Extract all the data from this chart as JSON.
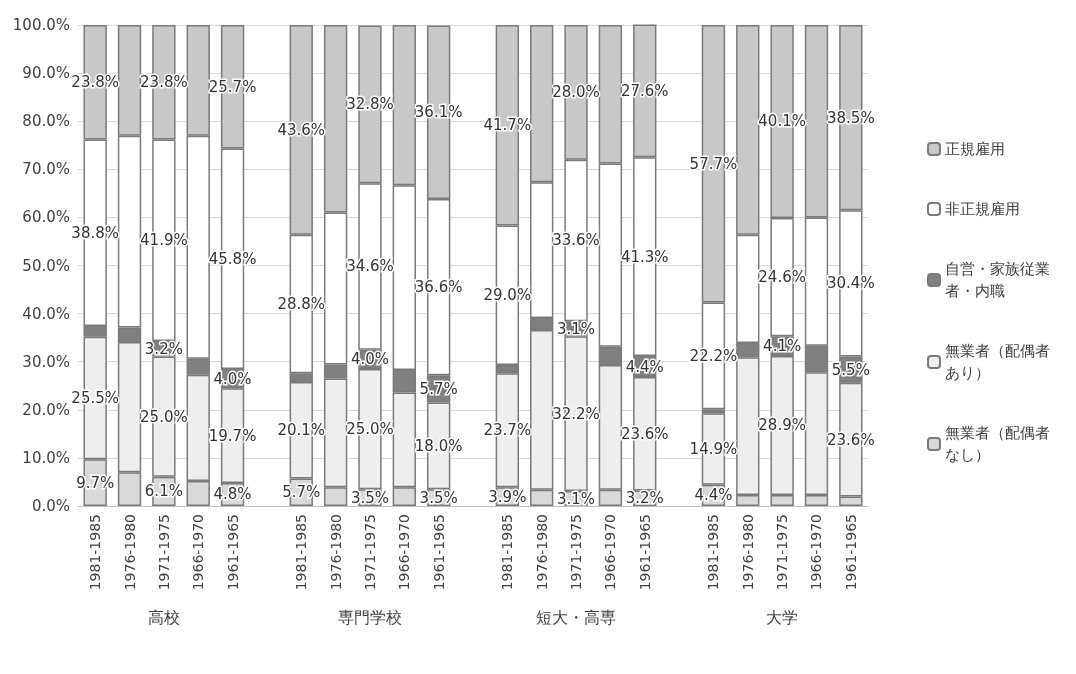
{
  "chart_data": {
    "type": "bar",
    "stacked": true,
    "categories": [
      "1981-1985",
      "1976-1980",
      "1971-1975",
      "1966-1970",
      "1961-1965",
      null,
      "1981-1985",
      "1976-1980",
      "1971-1975",
      "1966-1970",
      "1961-1965",
      null,
      "1981-1985",
      "1976-1980",
      "1971-1975",
      "1966-1970",
      "1961-1965",
      null,
      "1981-1985",
      "1976-1980",
      "1971-1975",
      "1966-1970",
      "1961-1965"
    ],
    "annotations": [
      "高校",
      "専門学校",
      "短大・高専",
      "大学"
    ],
    "ylim": [
      0,
      100
    ],
    "yticks": [
      {
        "value": 0,
        "label": "0.0%"
      },
      {
        "value": 10,
        "label": "10.0%"
      },
      {
        "value": 20,
        "label": "20.0%"
      },
      {
        "value": 30,
        "label": "30.0%"
      },
      {
        "value": 40,
        "label": "40.0%"
      },
      {
        "value": 50,
        "label": "50.0%"
      },
      {
        "value": 60,
        "label": "60.0%"
      },
      {
        "value": 70,
        "label": "70.0%"
      },
      {
        "value": 80,
        "label": "80.0%"
      },
      {
        "value": 90,
        "label": "90.0%"
      },
      {
        "value": 100,
        "label": "100.0%"
      }
    ],
    "grid": "y",
    "legend": "right",
    "series": [
      {
        "name": "無業者（配偶者なし）",
        "color": "#d9d9d9",
        "values": [
          9.7,
          7.0,
          6.1,
          5.2,
          4.8,
          null,
          5.7,
          3.9,
          3.5,
          3.9,
          3.5,
          null,
          3.9,
          3.4,
          3.1,
          3.4,
          3.2,
          null,
          4.4,
          2.3,
          2.3,
          2.3,
          2.0
        ],
        "value_labels": [
          "9.7%",
          null,
          "6.1%",
          null,
          "4.8%",
          null,
          "5.7%",
          null,
          "3.5%",
          null,
          "3.5%",
          null,
          "3.9%",
          null,
          "3.1%",
          null,
          "3.2%",
          null,
          "4.4%",
          null,
          null,
          null,
          null
        ]
      },
      {
        "name": "無業者（配偶者あり）",
        "color": "#eeeeee",
        "values": [
          25.5,
          27.1,
          25.0,
          22.1,
          19.7,
          null,
          20.1,
          22.6,
          25.0,
          19.7,
          18.0,
          null,
          23.7,
          33.2,
          32.2,
          25.9,
          23.6,
          null,
          14.9,
          28.6,
          28.9,
          25.5,
          23.6
        ],
        "value_labels": [
          "25.5%",
          null,
          "25.0%",
          null,
          "19.7%",
          null,
          "20.1%",
          null,
          "25.0%",
          null,
          "18.0%",
          null,
          "23.7%",
          null,
          "32.2%",
          null,
          "23.6%",
          null,
          "14.9%",
          null,
          "28.9%",
          null,
          "23.6%"
        ]
      },
      {
        "name": "自営・家族従業者・内職",
        "color": "#808080",
        "values": [
          2.2,
          3.0,
          3.2,
          3.3,
          4.0,
          null,
          1.8,
          2.9,
          4.0,
          4.7,
          5.7,
          null,
          1.7,
          2.5,
          3.1,
          3.8,
          4.4,
          null,
          0.8,
          3.0,
          4.1,
          5.5,
          5.5
        ],
        "value_labels": [
          null,
          null,
          "3.2%",
          null,
          "4.0%",
          null,
          null,
          null,
          "4.0%",
          null,
          "5.7%",
          null,
          null,
          null,
          "3.1%",
          null,
          "4.4%",
          null,
          null,
          null,
          "4.1%",
          null,
          "5.5%"
        ]
      },
      {
        "name": "非正規雇用",
        "color": "#ffffff",
        "values": [
          38.8,
          39.9,
          41.9,
          46.4,
          45.8,
          null,
          28.8,
          31.6,
          34.6,
          38.4,
          36.6,
          null,
          29.0,
          28.2,
          33.6,
          38.1,
          41.3,
          null,
          22.2,
          22.5,
          24.6,
          26.7,
          30.4
        ],
        "value_labels": [
          "38.8%",
          null,
          "41.9%",
          null,
          "45.8%",
          null,
          "28.8%",
          null,
          "34.6%",
          null,
          "36.6%",
          null,
          "29.0%",
          null,
          "33.6%",
          null,
          "41.3%",
          null,
          "22.2%",
          null,
          "24.6%",
          null,
          "30.4%"
        ]
      },
      {
        "name": "正規雇用",
        "color": "#c8c8c8",
        "values": [
          23.8,
          23.0,
          23.8,
          23.0,
          25.7,
          null,
          43.6,
          39.0,
          32.8,
          33.3,
          36.1,
          null,
          41.7,
          32.7,
          28.0,
          28.8,
          27.6,
          null,
          57.7,
          43.6,
          40.1,
          40.0,
          38.5
        ],
        "value_labels": [
          "23.8%",
          null,
          "23.8%",
          null,
          "25.7%",
          null,
          "43.6%",
          null,
          "32.8%",
          null,
          "36.1%",
          null,
          "41.7%",
          null,
          "28.0%",
          null,
          "27.6%",
          null,
          "57.7%",
          null,
          "40.1%",
          null,
          "38.5%"
        ]
      }
    ]
  }
}
